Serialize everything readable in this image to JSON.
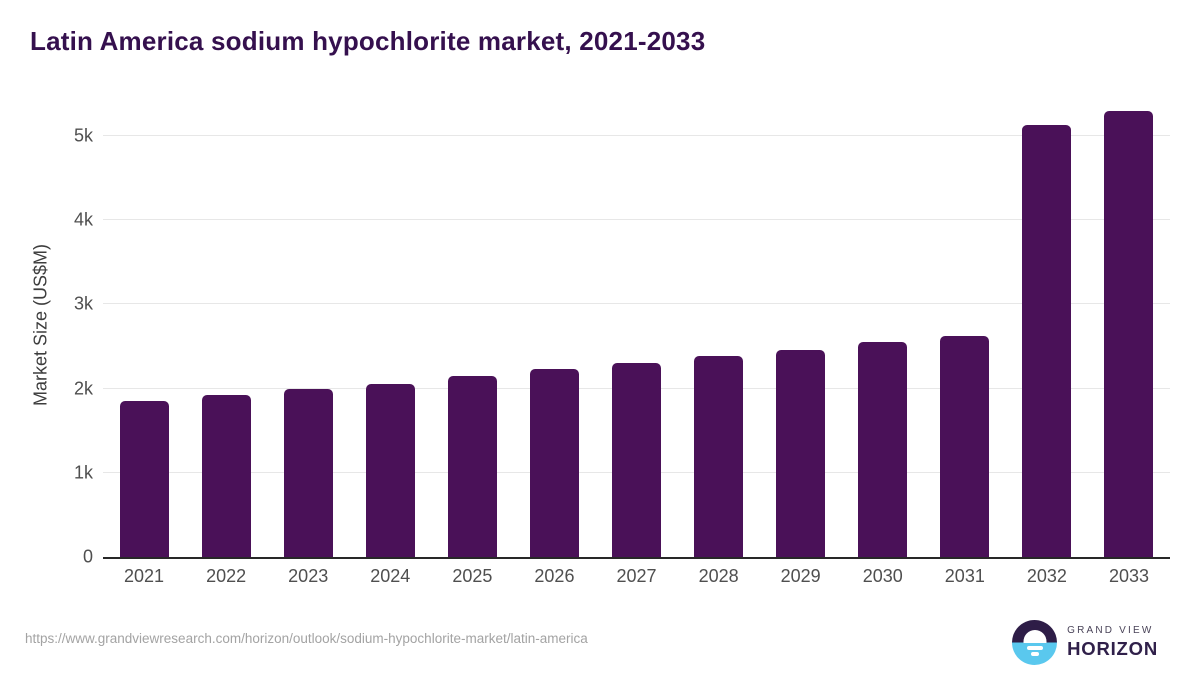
{
  "header": {
    "title": "Latin America sodium hypochlorite market, 2021-2033"
  },
  "chart_data": {
    "type": "bar",
    "title": "Latin America sodium hypochlorite market, 2021-2033",
    "xlabel": "",
    "ylabel": "Market Size (US$M)",
    "categories": [
      "2021",
      "2022",
      "2023",
      "2024",
      "2025",
      "2026",
      "2027",
      "2028",
      "2029",
      "2030",
      "2031",
      "2032",
      "2033"
    ],
    "values": [
      1850,
      1920,
      1990,
      2060,
      2150,
      2230,
      2300,
      2390,
      2460,
      2550,
      2630,
      5130,
      5300
    ],
    "ylim": [
      0,
      5430
    ],
    "yticks": [
      {
        "label": "0",
        "value": 0
      },
      {
        "label": "1k",
        "value": 1000
      },
      {
        "label": "2k",
        "value": 2000
      },
      {
        "label": "3k",
        "value": 3000
      },
      {
        "label": "4k",
        "value": 4000
      },
      {
        "label": "5k",
        "value": 5000
      }
    ],
    "grid": "horizontal",
    "legend": "none",
    "bar_color": "#4a1158"
  },
  "colors": {
    "title": "#35104e",
    "bar": "#4a1158",
    "axis_text": "#4f4f4f",
    "gridline": "#e7e7e7",
    "axis_line": "#282828",
    "logo_purple": "#2e1d47",
    "logo_blue": "#5ac8ee"
  },
  "footer": {
    "source_url": "https://www.grandviewresearch.com/horizon/outlook/sodium-hypochlorite-market/latin-america",
    "logo": {
      "top_text": "GRAND VIEW",
      "bottom_text": "HORIZON"
    }
  }
}
